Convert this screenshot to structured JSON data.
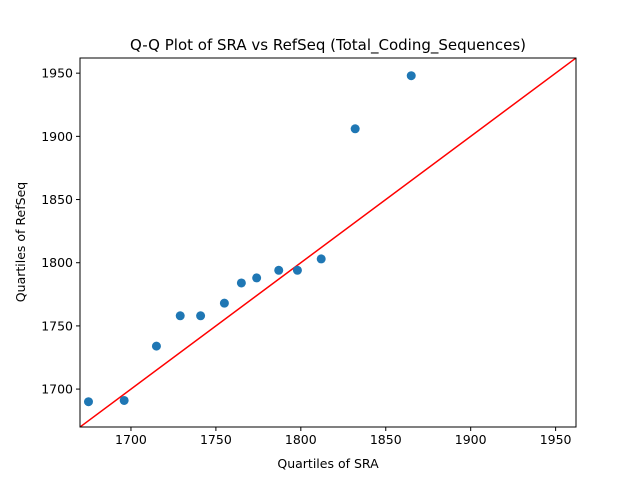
{
  "chart_data": {
    "type": "scatter",
    "title": "Q-Q Plot of SRA vs RefSeq (Total_Coding_Sequences)",
    "xlabel": "Quartiles of SRA",
    "ylabel": "Quartiles of RefSeq",
    "xlim": [
      1670,
      1962
    ],
    "ylim": [
      1670,
      1962
    ],
    "xticks": [
      1700,
      1750,
      1800,
      1850,
      1900,
      1950
    ],
    "yticks": [
      1700,
      1750,
      1800,
      1850,
      1900,
      1950
    ],
    "grid": false,
    "series": [
      {
        "color": "#1f77b4",
        "points": [
          {
            "x": 1675,
            "y": 1690
          },
          {
            "x": 1696,
            "y": 1691
          },
          {
            "x": 1715,
            "y": 1734
          },
          {
            "x": 1729,
            "y": 1758
          },
          {
            "x": 1741,
            "y": 1758
          },
          {
            "x": 1755,
            "y": 1768
          },
          {
            "x": 1765,
            "y": 1784
          },
          {
            "x": 1774,
            "y": 1788
          },
          {
            "x": 1787,
            "y": 1794
          },
          {
            "x": 1798,
            "y": 1794
          },
          {
            "x": 1812,
            "y": 1803
          },
          {
            "x": 1832,
            "y": 1906
          },
          {
            "x": 1865,
            "y": 1948
          }
        ]
      }
    ],
    "reference_line": {
      "from": [
        1670,
        1670
      ],
      "to": [
        1962,
        1962
      ],
      "color": "#ff0000"
    }
  }
}
